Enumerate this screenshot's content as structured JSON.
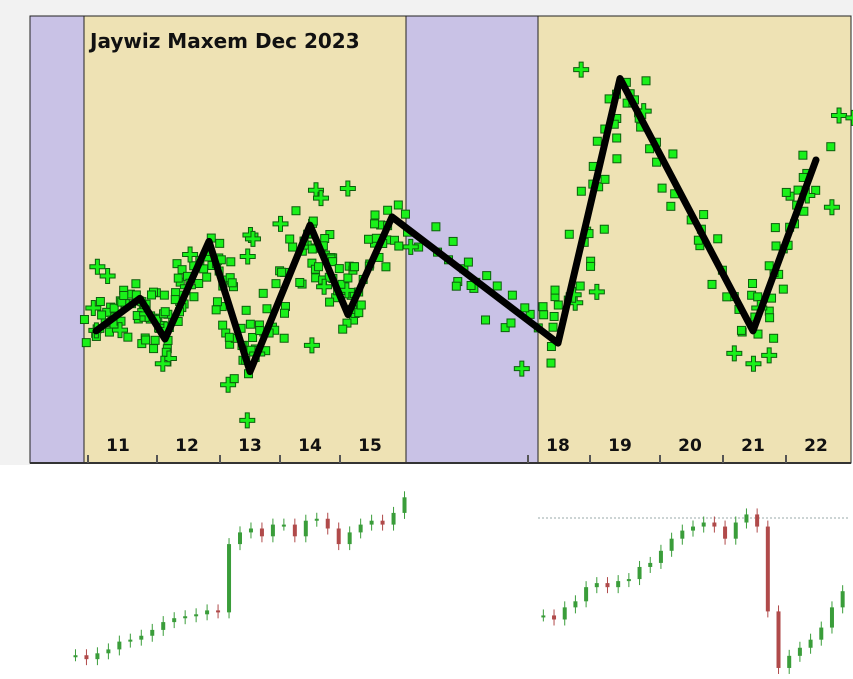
{
  "title": "Jaywiz Maxem Dec 2023",
  "colors": {
    "weekday_background": "#eee2b4",
    "weekend_background": "#c9c2e6",
    "scatter_fill": "#1af01a",
    "scatter_shadow": "#0d5e0d",
    "zigzag_line": "#000000",
    "candle_up": "#3a9d3a",
    "candle_down": "#b04a4a"
  },
  "chart_data": [
    {
      "type": "scatter",
      "title": "Jaywiz Maxem Dec 2023",
      "x_tick_labels": [
        "11",
        "12",
        "13",
        "14",
        "15",
        "18",
        "19",
        "20",
        "21",
        "22"
      ],
      "legend": "none",
      "grid": false,
      "point_marker": "green-plus",
      "zigzag_pivots": [
        {
          "day": "11",
          "level": 0.3
        },
        {
          "day": "11",
          "level": 0.38
        },
        {
          "day": "12",
          "level": 0.28
        },
        {
          "day": "12",
          "level": 0.52
        },
        {
          "day": "13",
          "level": 0.2
        },
        {
          "day": "14",
          "level": 0.56
        },
        {
          "day": "15",
          "level": 0.34
        },
        {
          "day": "15",
          "level": 0.58
        },
        {
          "day": "18",
          "level": 0.27
        },
        {
          "day": "19",
          "level": 0.92
        },
        {
          "day": "21",
          "level": 0.3
        },
        {
          "day": "22",
          "level": 0.72
        }
      ]
    },
    {
      "type": "candlestick",
      "series": [
        {
          "name": "",
          "values": [
            0.05,
            0.03,
            0.06,
            0.08,
            0.12,
            0.13,
            0.15,
            0.18,
            0.22,
            0.24,
            0.25,
            0.26,
            0.28,
            0.27,
            0.62,
            0.68,
            0.7,
            0.66,
            0.72,
            0.72,
            0.66,
            0.74,
            0.75,
            0.7,
            0.62,
            0.68,
            0.72,
            0.74,
            0.72,
            0.78,
            0.86
          ]
        },
        {
          "name": "",
          "values": [
            0.28,
            0.26,
            0.32,
            0.35,
            0.42,
            0.44,
            0.42,
            0.45,
            0.46,
            0.52,
            0.54,
            0.6,
            0.66,
            0.7,
            0.72,
            0.74,
            0.72,
            0.66,
            0.74,
            0.78,
            0.72,
            0.3,
            0.02,
            0.08,
            0.12,
            0.16,
            0.22,
            0.32,
            0.4
          ]
        }
      ]
    }
  ]
}
